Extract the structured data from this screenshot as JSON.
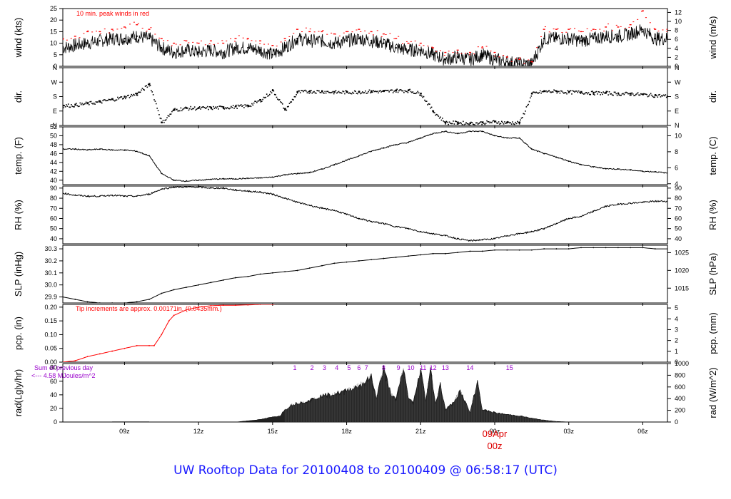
{
  "page": {
    "footer_title": "UW Rooftop Data for 20100408  to  20100409 @ 06:58:17  (UTC)"
  },
  "colors": {
    "axis": "#000000",
    "data": "#000000",
    "peak": "#ff0000",
    "precip": "#ff0000",
    "annotation_purple": "#9900cc",
    "footer": "#1a1aff",
    "date_marker": "#dd0000"
  },
  "chart_data": [
    {
      "type": "line",
      "id": "wind",
      "ylabel_left": "wind (kts)",
      "ylabel_right": "wind (m/s)",
      "annotation": "10 min. peak winds in red",
      "ylim": [
        0,
        25
      ],
      "left_ticks": [
        0,
        5,
        10,
        15,
        20,
        25
      ],
      "right_ticks": [
        0,
        2,
        4,
        6,
        8,
        10,
        12
      ],
      "right_factor": 1.94384,
      "x": [
        6.5,
        7,
        7.5,
        8,
        8.5,
        9,
        9.5,
        10,
        10.5,
        11,
        11.5,
        12,
        12.5,
        13,
        13.5,
        14,
        14.5,
        15,
        15.5,
        16,
        16.5,
        17,
        17.5,
        18,
        18.5,
        19,
        19.5,
        20,
        20.5,
        21,
        21.5,
        22,
        22.5,
        23,
        23.5,
        24,
        24.5,
        25,
        25.5,
        26,
        26.5,
        27,
        27.5,
        28,
        28.5,
        29,
        29.5,
        30,
        30.5,
        31
      ],
      "series": [
        {
          "values": [
            8,
            9,
            10,
            11,
            12,
            12,
            13,
            12,
            8,
            6,
            7,
            6,
            7,
            6,
            8,
            8,
            7,
            5,
            8,
            12,
            11,
            11,
            10,
            11,
            12,
            11,
            10,
            8,
            7,
            7,
            5,
            3,
            4,
            3,
            5,
            3,
            2,
            1,
            1,
            12,
            12,
            12,
            11,
            12,
            13,
            13,
            14,
            16,
            12,
            12
          ]
        },
        {
          "values": [
            12,
            13,
            15,
            15,
            16,
            17,
            18,
            16,
            12,
            10,
            11,
            10,
            11,
            10,
            12,
            12,
            11,
            9,
            12,
            16,
            15,
            15,
            14,
            15,
            16,
            15,
            14,
            12,
            10,
            10,
            8,
            6,
            7,
            6,
            8,
            6,
            4,
            3,
            2,
            16,
            16,
            16,
            15,
            16,
            17,
            17,
            18,
            24,
            16,
            16
          ]
        }
      ]
    },
    {
      "type": "scatter",
      "id": "dir",
      "ylabel_left": "dir.",
      "ylabel_right": "dir.",
      "ylim": [
        0,
        360
      ],
      "left_ticks": [
        0,
        90,
        180,
        270,
        360
      ],
      "tick_labels": [
        "N",
        "E",
        "S",
        "W",
        "N"
      ],
      "x": [
        6.5,
        7,
        7.5,
        8,
        8.5,
        9,
        9.5,
        10,
        10.5,
        11,
        11.5,
        12,
        12.5,
        13,
        13.5,
        14,
        14.5,
        15,
        15.5,
        16,
        16.5,
        17,
        17.5,
        18,
        18.5,
        19,
        19.5,
        20,
        20.5,
        21,
        21.5,
        22,
        22.5,
        23,
        23.5,
        24,
        24.5,
        25,
        25.5,
        26,
        26.5,
        27,
        27.5,
        28,
        28.5,
        29,
        29.5,
        30,
        30.5,
        31
      ],
      "values": [
        125,
        130,
        140,
        150,
        165,
        180,
        200,
        260,
        20,
        100,
        110,
        110,
        112,
        115,
        120,
        125,
        160,
        220,
        100,
        210,
        215,
        215,
        210,
        210,
        212,
        215,
        215,
        220,
        220,
        200,
        90,
        20,
        20,
        15,
        20,
        25,
        20,
        20,
        200,
        215,
        215,
        210,
        210,
        205,
        205,
        200,
        200,
        195,
        190,
        185
      ]
    },
    {
      "type": "line",
      "id": "temp",
      "ylabel_left": "temp. (F)",
      "ylabel_right": "temp. (C)",
      "ylim": [
        39,
        52
      ],
      "left_ticks": [
        40,
        42,
        44,
        46,
        48,
        50,
        52
      ],
      "right_ticks": [
        4,
        6,
        8,
        10
      ],
      "x": [
        6.5,
        7,
        7.5,
        8,
        8.5,
        9,
        9.5,
        10,
        10.5,
        11,
        11.5,
        12,
        12.5,
        13,
        13.5,
        14,
        14.5,
        15,
        15.5,
        16,
        16.5,
        17,
        17.5,
        18,
        18.5,
        19,
        19.5,
        20,
        20.5,
        21,
        21.5,
        22,
        22.5,
        23,
        23.5,
        24,
        24.5,
        25,
        25.5,
        26,
        26.5,
        27,
        27.5,
        28,
        28.5,
        29,
        29.5,
        30,
        30.5,
        31
      ],
      "values": [
        47,
        47,
        46.8,
        47,
        46.8,
        46.8,
        46.5,
        45.5,
        41.5,
        40,
        39.8,
        40,
        40.2,
        40.3,
        40.3,
        40.4,
        40.5,
        40.7,
        41.2,
        41.5,
        41.7,
        42.5,
        43.5,
        44.5,
        45.5,
        46.5,
        47.3,
        48,
        48.5,
        49.5,
        50.5,
        51,
        50.5,
        51,
        51,
        50,
        49.5,
        49.5,
        47,
        46,
        45.2,
        44.3,
        43.5,
        43,
        42.6,
        42.5,
        42.3,
        42,
        41.9,
        41.6
      ]
    },
    {
      "type": "line",
      "id": "rh",
      "ylabel_left": "RH (%)",
      "ylabel_right": "RH (%)",
      "ylim": [
        35,
        92
      ],
      "left_ticks": [
        40,
        50,
        60,
        70,
        80,
        90
      ],
      "right_ticks": [
        40,
        50,
        60,
        70,
        80,
        90
      ],
      "x": [
        6.5,
        7,
        7.5,
        8,
        8.5,
        9,
        9.5,
        10,
        10.5,
        11,
        11.5,
        12,
        12.5,
        13,
        13.5,
        14,
        14.5,
        15,
        15.5,
        16,
        16.5,
        17,
        17.5,
        18,
        18.5,
        19,
        19.5,
        20,
        20.5,
        21,
        21.5,
        22,
        22.5,
        23,
        23.5,
        24,
        24.5,
        25,
        25.5,
        26,
        26.5,
        27,
        27.5,
        28,
        28.5,
        29,
        29.5,
        30,
        30.5,
        31
      ],
      "values": [
        85,
        83,
        82,
        82,
        83,
        82,
        82,
        84,
        89,
        91,
        91,
        91,
        90,
        90,
        88,
        87,
        86,
        84,
        80,
        76,
        73,
        70,
        68,
        64,
        60,
        57,
        55,
        52,
        50,
        47,
        45,
        43,
        40,
        38,
        39,
        40,
        43,
        45,
        47,
        50,
        55,
        60,
        62,
        67,
        72,
        74,
        75,
        76,
        77,
        77
      ]
    },
    {
      "type": "line",
      "id": "slp",
      "ylabel_left": "SLP (inHg)",
      "ylabel_right": "SLP (hPa)",
      "ylim": [
        29.85,
        30.33
      ],
      "left_ticks": [
        29.9,
        30.0,
        30.1,
        30.2,
        30.3
      ],
      "tick_labels": [
        "29.9",
        "30.0",
        "30.1",
        "30.2",
        "30.3"
      ],
      "right_ticks": [
        1015,
        1020,
        1025
      ],
      "x": [
        6.5,
        7,
        7.5,
        8,
        8.5,
        9,
        9.5,
        10,
        10.5,
        11,
        11.5,
        12,
        12.5,
        13,
        13.5,
        14,
        14.5,
        15,
        15.5,
        16,
        16.5,
        17,
        17.5,
        18,
        18.5,
        19,
        19.5,
        20,
        20.5,
        21,
        21.5,
        22,
        22.5,
        23,
        23.5,
        24,
        24.5,
        25,
        25.5,
        26,
        26.5,
        27,
        27.5,
        28,
        28.5,
        29,
        29.5,
        30,
        30.5,
        31
      ],
      "values": [
        29.9,
        29.88,
        29.86,
        29.85,
        29.85,
        29.85,
        29.86,
        29.88,
        29.93,
        29.96,
        29.98,
        30.0,
        30.02,
        30.04,
        30.06,
        30.07,
        30.09,
        30.1,
        30.11,
        30.12,
        30.14,
        30.16,
        30.18,
        30.19,
        30.2,
        30.21,
        30.22,
        30.23,
        30.24,
        30.25,
        30.26,
        30.26,
        30.27,
        30.28,
        30.28,
        30.29,
        30.29,
        30.29,
        30.29,
        30.3,
        30.3,
        30.3,
        30.31,
        30.31,
        30.31,
        30.31,
        30.31,
        30.31,
        30.3,
        30.3
      ]
    },
    {
      "type": "line",
      "id": "pcp",
      "ylabel_left": "pcp. (in)",
      "ylabel_right": "pcp. (mm)",
      "annotation": "Tip increments are approx. 0.00171in. (0.0435mm.)",
      "ylim": [
        0,
        0.21
      ],
      "left_ticks": [
        0.0,
        0.05,
        0.1,
        0.15,
        0.2
      ],
      "tick_labels": [
        "0.00",
        "0.05",
        "0.10",
        "0.15",
        "0.20"
      ],
      "right_ticks": [
        0,
        1,
        2,
        3,
        4,
        5
      ],
      "x": [
        6.5,
        7,
        7.5,
        8,
        8.5,
        9,
        9.5,
        10,
        10.2,
        10.5,
        10.8,
        11,
        11.5,
        12,
        12.5,
        13,
        13.5,
        14,
        14.5,
        15,
        15.2,
        31
      ],
      "values": [
        0,
        0.005,
        0.02,
        0.03,
        0.04,
        0.05,
        0.06,
        0.06,
        0.06,
        0.1,
        0.15,
        0.17,
        0.19,
        0.2,
        0.205,
        0.207,
        0.207,
        0.208,
        0.21,
        0.21,
        0.212,
        0.212
      ]
    },
    {
      "type": "area",
      "id": "rad",
      "ylabel_left": "rad(Lgly/hr)",
      "ylabel_right": "rad (W/m^2)",
      "annotation_lines": [
        "Sum of previous day",
        "<--- 4.58 MJoules/m^2"
      ],
      "ylim": [
        0,
        86
      ],
      "left_ticks": [
        0,
        20,
        40,
        60,
        80
      ],
      "right_ticks": [
        0,
        200,
        400,
        600,
        800,
        1000
      ],
      "sun_labels": [
        "1",
        "2",
        "3",
        "4",
        "5",
        "6",
        "7",
        "8",
        "9",
        "10",
        "11",
        "12",
        "13",
        "14",
        "15"
      ],
      "sun_label_x": [
        15.9,
        16.6,
        17.1,
        17.6,
        18.1,
        18.5,
        18.8,
        19.5,
        20.1,
        20.6,
        21.1,
        21.5,
        22.0,
        23.0,
        24.6
      ],
      "x": [
        13.5,
        14,
        14.5,
        15,
        15.3,
        15.5,
        15.8,
        16,
        16.5,
        17,
        17.5,
        18,
        18.3,
        18.6,
        19,
        19.2,
        19.5,
        19.8,
        20,
        20.3,
        20.5,
        20.7,
        21,
        21.2,
        21.4,
        21.6,
        21.8,
        22,
        22.3,
        22.6,
        23,
        23.3,
        23.5,
        24,
        24.5,
        25,
        25.5,
        26,
        26.5,
        27
      ],
      "values": [
        0,
        2,
        4,
        8,
        10,
        20,
        28,
        30,
        35,
        42,
        45,
        50,
        55,
        60,
        72,
        40,
        85,
        45,
        35,
        86,
        40,
        30,
        85,
        35,
        86,
        30,
        60,
        20,
        30,
        50,
        15,
        65,
        20,
        15,
        12,
        10,
        6,
        3,
        1,
        0
      ],
      "baseline_segment": {
        "x": [
          8.5,
          10.0
        ],
        "value": 0.3
      }
    }
  ],
  "x_axis": {
    "tick_labels": [
      "09z",
      "12z",
      "15z",
      "18z",
      "21z",
      "00z",
      "03z",
      "06z"
    ],
    "tick_hours": [
      9,
      12,
      15,
      18,
      21,
      24,
      27,
      30
    ],
    "date_label": "09Apr",
    "date_hour_label": "00z"
  }
}
